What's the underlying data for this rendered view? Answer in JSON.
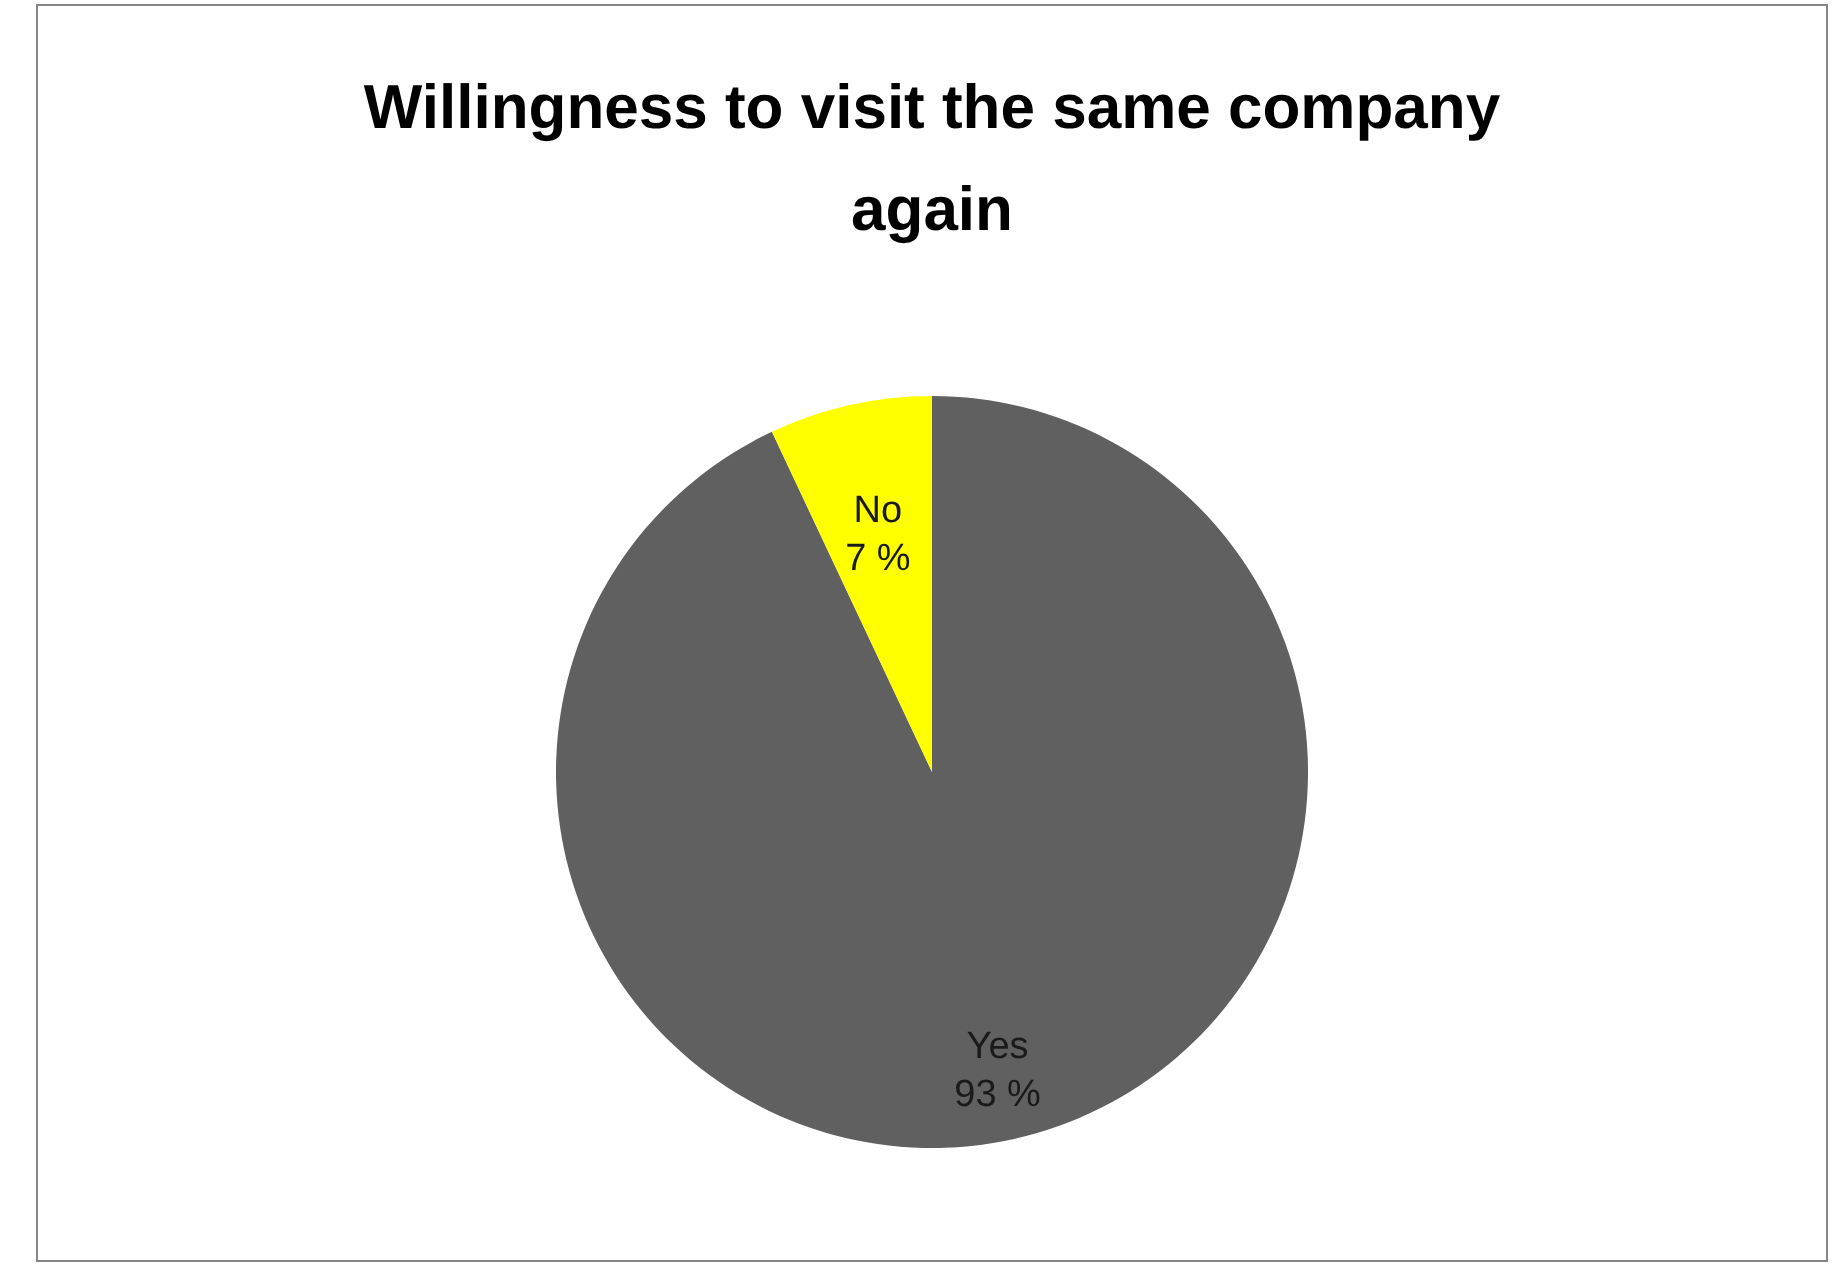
{
  "chart_data": {
    "type": "pie",
    "title": "Willingness to visit the same company again",
    "categories": [
      "Yes",
      "No"
    ],
    "values": [
      93,
      7
    ],
    "colors": [
      "#606060",
      "#ffff00"
    ],
    "value_labels": [
      "93 %",
      "7 %"
    ]
  }
}
